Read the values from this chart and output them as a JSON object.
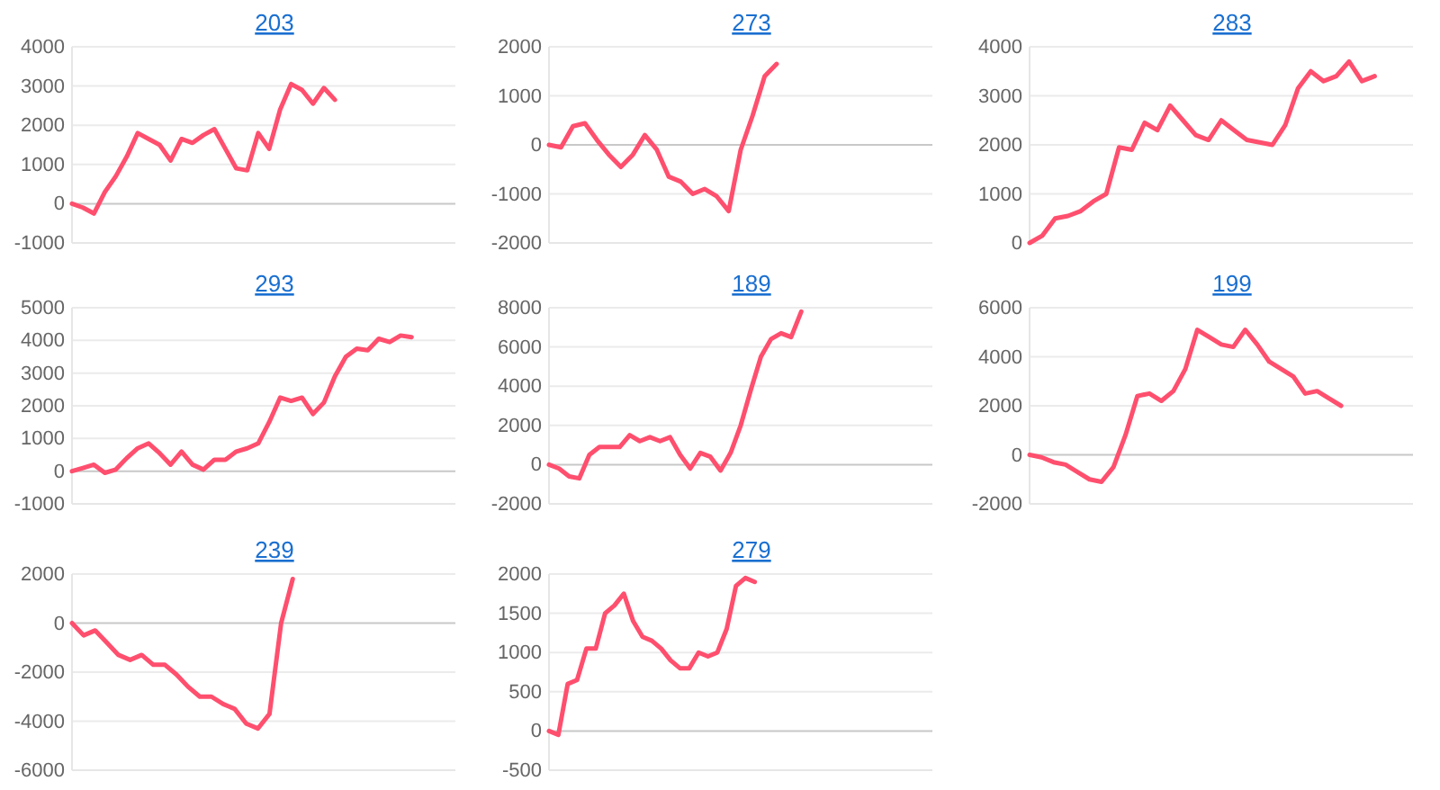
{
  "chart_data": [
    {
      "type": "line",
      "title": "203",
      "categories": [
        null,
        null,
        null,
        null,
        null,
        null,
        null,
        null,
        null,
        null,
        null,
        null,
        null,
        null,
        null,
        null,
        null,
        null,
        null,
        null,
        null,
        null,
        null,
        null,
        null,
        null,
        null,
        null,
        null,
        null,
        null,
        null,
        null,
        null,
        null,
        null
      ],
      "series": [
        {
          "color": "#ff4f6e",
          "values": [
            0,
            -100,
            -250,
            300,
            700,
            1200,
            1800,
            1650,
            1500,
            1100,
            1650,
            1550,
            1750,
            1900,
            1400,
            900,
            850,
            1800,
            1400,
            2400,
            3050,
            2900,
            2550,
            2950,
            2650,
            null,
            null,
            null,
            null,
            null,
            null,
            null,
            null,
            null,
            null,
            null
          ]
        }
      ],
      "ylim": [
        -1000,
        4000
      ],
      "yticks": [
        -1000,
        0,
        1000,
        2000,
        3000,
        4000
      ],
      "grid": "y",
      "marker": "none",
      "line_style": "solid",
      "tick_labels": "y"
    },
    {
      "type": "line",
      "title": "273",
      "categories": [
        null,
        null,
        null,
        null,
        null,
        null,
        null,
        null,
        null,
        null,
        null,
        null,
        null,
        null,
        null,
        null,
        null,
        null,
        null,
        null,
        null,
        null,
        null,
        null,
        null,
        null,
        null,
        null,
        null,
        null,
        null,
        null,
        null
      ],
      "series": [
        {
          "color": "#ff4f6e",
          "values": [
            0,
            -50,
            380,
            440,
            100,
            -200,
            -450,
            -200,
            200,
            -100,
            -650,
            -750,
            -1000,
            -900,
            -1050,
            -1350,
            -100,
            600,
            1400,
            1650,
            null,
            null,
            null,
            null,
            null,
            null,
            null,
            null,
            null,
            null,
            null,
            null,
            null
          ]
        }
      ],
      "ylim": [
        -2000,
        2000
      ],
      "yticks": [
        -2000,
        -1000,
        0,
        1000,
        2000
      ],
      "grid": "y",
      "marker": "none",
      "line_style": "solid",
      "tick_labels": "y"
    },
    {
      "type": "line",
      "title": "283",
      "categories": [
        null,
        null,
        null,
        null,
        null,
        null,
        null,
        null,
        null,
        null,
        null,
        null,
        null,
        null,
        null,
        null,
        null,
        null,
        null,
        null,
        null,
        null,
        null,
        null,
        null,
        null,
        null,
        null,
        null,
        null,
        null
      ],
      "series": [
        {
          "color": "#ff4f6e",
          "values": [
            0,
            150,
            500,
            550,
            650,
            850,
            1000,
            1950,
            1900,
            2450,
            2300,
            2800,
            2500,
            2200,
            2100,
            2500,
            2300,
            2100,
            2050,
            2000,
            2400,
            3150,
            3500,
            3300,
            3400,
            3700,
            3300,
            3400,
            null,
            null,
            null
          ]
        }
      ],
      "ylim": [
        0,
        4000
      ],
      "yticks": [
        0,
        1000,
        2000,
        3000,
        4000
      ],
      "grid": "y",
      "marker": "none",
      "line_style": "solid",
      "tick_labels": "y"
    },
    {
      "type": "line",
      "title": "293",
      "categories": [
        null,
        null,
        null,
        null,
        null,
        null,
        null,
        null,
        null,
        null,
        null,
        null,
        null,
        null,
        null,
        null,
        null,
        null,
        null,
        null,
        null,
        null,
        null,
        null,
        null,
        null,
        null,
        null,
        null,
        null,
        null,
        null,
        null,
        null,
        null,
        null
      ],
      "series": [
        {
          "color": "#ff4f6e",
          "values": [
            0,
            100,
            200,
            -50,
            50,
            400,
            700,
            850,
            550,
            200,
            600,
            200,
            50,
            350,
            350,
            600,
            700,
            850,
            1500,
            2250,
            2150,
            2250,
            1750,
            2100,
            2900,
            3500,
            3750,
            3700,
            4050,
            3950,
            4150,
            4100,
            null,
            null,
            null,
            null
          ]
        }
      ],
      "ylim": [
        -1000,
        5000
      ],
      "yticks": [
        -1000,
        0,
        1000,
        2000,
        3000,
        4000,
        5000
      ],
      "grid": "y",
      "marker": "none",
      "line_style": "solid",
      "tick_labels": "y"
    },
    {
      "type": "line",
      "title": "189",
      "categories": [
        null,
        null,
        null,
        null,
        null,
        null,
        null,
        null,
        null,
        null,
        null,
        null,
        null,
        null,
        null,
        null,
        null,
        null,
        null,
        null,
        null,
        null,
        null,
        null,
        null,
        null,
        null,
        null,
        null,
        null,
        null,
        null,
        null,
        null,
        null,
        null,
        null,
        null,
        null
      ],
      "series": [
        {
          "color": "#ff4f6e",
          "values": [
            0,
            -200,
            -600,
            -700,
            500,
            900,
            900,
            900,
            1500,
            1200,
            1400,
            1200,
            1400,
            500,
            -200,
            600,
            400,
            -300,
            600,
            2000,
            3800,
            5500,
            6400,
            6700,
            6500,
            7800,
            null,
            null,
            null,
            null,
            null,
            null,
            null,
            null,
            null,
            null,
            null,
            null,
            null
          ]
        }
      ],
      "ylim": [
        -2000,
        8000
      ],
      "yticks": [
        -2000,
        0,
        2000,
        4000,
        6000,
        8000
      ],
      "grid": "y",
      "marker": "none",
      "line_style": "solid",
      "tick_labels": "y"
    },
    {
      "type": "line",
      "title": "199",
      "categories": [
        null,
        null,
        null,
        null,
        null,
        null,
        null,
        null,
        null,
        null,
        null,
        null,
        null,
        null,
        null,
        null,
        null,
        null,
        null,
        null,
        null,
        null,
        null,
        null,
        null,
        null,
        null,
        null,
        null,
        null,
        null,
        null,
        null
      ],
      "series": [
        {
          "color": "#ff4f6e",
          "values": [
            0,
            -100,
            -300,
            -400,
            -700,
            -1000,
            -1100,
            -500,
            800,
            2400,
            2500,
            2200,
            2600,
            3500,
            5100,
            4800,
            4500,
            4400,
            5100,
            4500,
            3800,
            3500,
            3200,
            2500,
            2600,
            2300,
            2000,
            null,
            null,
            null,
            null,
            null,
            null
          ]
        }
      ],
      "ylim": [
        -2000,
        6000
      ],
      "yticks": [
        -2000,
        0,
        2000,
        4000,
        6000
      ],
      "grid": "y",
      "marker": "none",
      "line_style": "solid",
      "tick_labels": "y"
    },
    {
      "type": "line",
      "title": "239",
      "categories": [
        null,
        null,
        null,
        null,
        null,
        null,
        null,
        null,
        null,
        null,
        null,
        null,
        null,
        null,
        null,
        null,
        null,
        null,
        null,
        null,
        null,
        null,
        null,
        null,
        null,
        null,
        null,
        null,
        null,
        null,
        null,
        null,
        null,
        null
      ],
      "series": [
        {
          "color": "#ff4f6e",
          "values": [
            0,
            -500,
            -300,
            -800,
            -1300,
            -1500,
            -1300,
            -1700,
            -1700,
            -2100,
            -2600,
            -3000,
            -3000,
            -3300,
            -3500,
            -4100,
            -4300,
            -3700,
            0,
            1800,
            null,
            null,
            null,
            null,
            null,
            null,
            null,
            null,
            null,
            null,
            null,
            null,
            null,
            null
          ]
        }
      ],
      "ylim": [
        -6000,
        2000
      ],
      "yticks": [
        -6000,
        -4000,
        -2000,
        0,
        2000
      ],
      "grid": "y",
      "marker": "none",
      "line_style": "solid",
      "tick_labels": "y"
    },
    {
      "type": "line",
      "title": "279",
      "categories": [
        null,
        null,
        null,
        null,
        null,
        null,
        null,
        null,
        null,
        null,
        null,
        null,
        null,
        null,
        null,
        null,
        null,
        null,
        null,
        null,
        null,
        null,
        null,
        null,
        null,
        null,
        null,
        null,
        null,
        null,
        null,
        null,
        null,
        null,
        null,
        null,
        null,
        null,
        null,
        null,
        null,
        null
      ],
      "series": [
        {
          "color": "#ff4f6e",
          "values": [
            0,
            -50,
            600,
            650,
            1050,
            1050,
            1500,
            1600,
            1750,
            1400,
            1200,
            1150,
            1050,
            900,
            800,
            800,
            1000,
            950,
            1000,
            1300,
            1850,
            1950,
            1900,
            null,
            null,
            null,
            null,
            null,
            null,
            null,
            null,
            null,
            null,
            null,
            null,
            null,
            null,
            null,
            null,
            null,
            null,
            null
          ]
        }
      ],
      "ylim": [
        -500,
        2000
      ],
      "yticks": [
        -500,
        0,
        500,
        1000,
        1500,
        2000
      ],
      "grid": "y",
      "marker": "none",
      "line_style": "solid",
      "tick_labels": "y"
    }
  ]
}
